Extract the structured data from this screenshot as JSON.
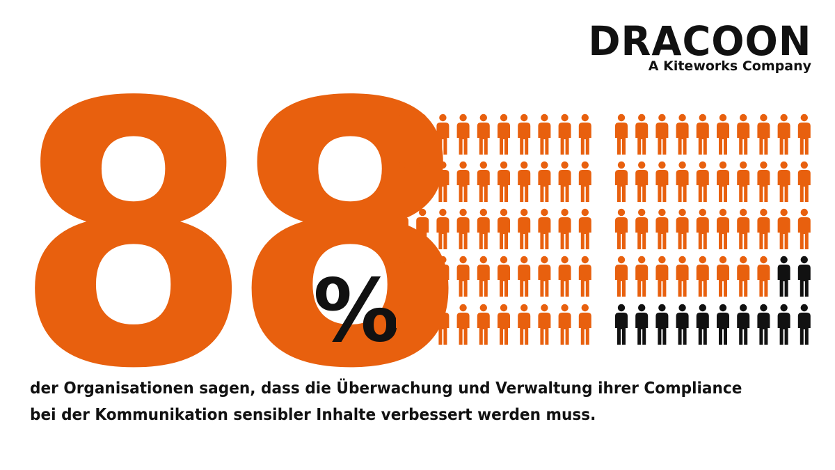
{
  "brand": {
    "name": "DRACOON",
    "tagline": "A Kiteworks Company"
  },
  "stat": {
    "number": "88",
    "percent_sign": "%",
    "value_percent": 88,
    "caption": "der Organisationen sagen, dass die Überwachung und Verwaltung ihrer Compliance bei der Kommunikation sensibler Inhalte verbessert werden muss."
  },
  "pictogram": {
    "total": 100,
    "highlighted": 88,
    "groups": 2,
    "rows": 5,
    "columns_per_group": 10,
    "highlight_color": "#e8600e",
    "rest_color": "#111111",
    "icon": "person-icon"
  },
  "colors": {
    "accent": "#e8600e",
    "text": "#111111",
    "background": "#ffffff"
  }
}
